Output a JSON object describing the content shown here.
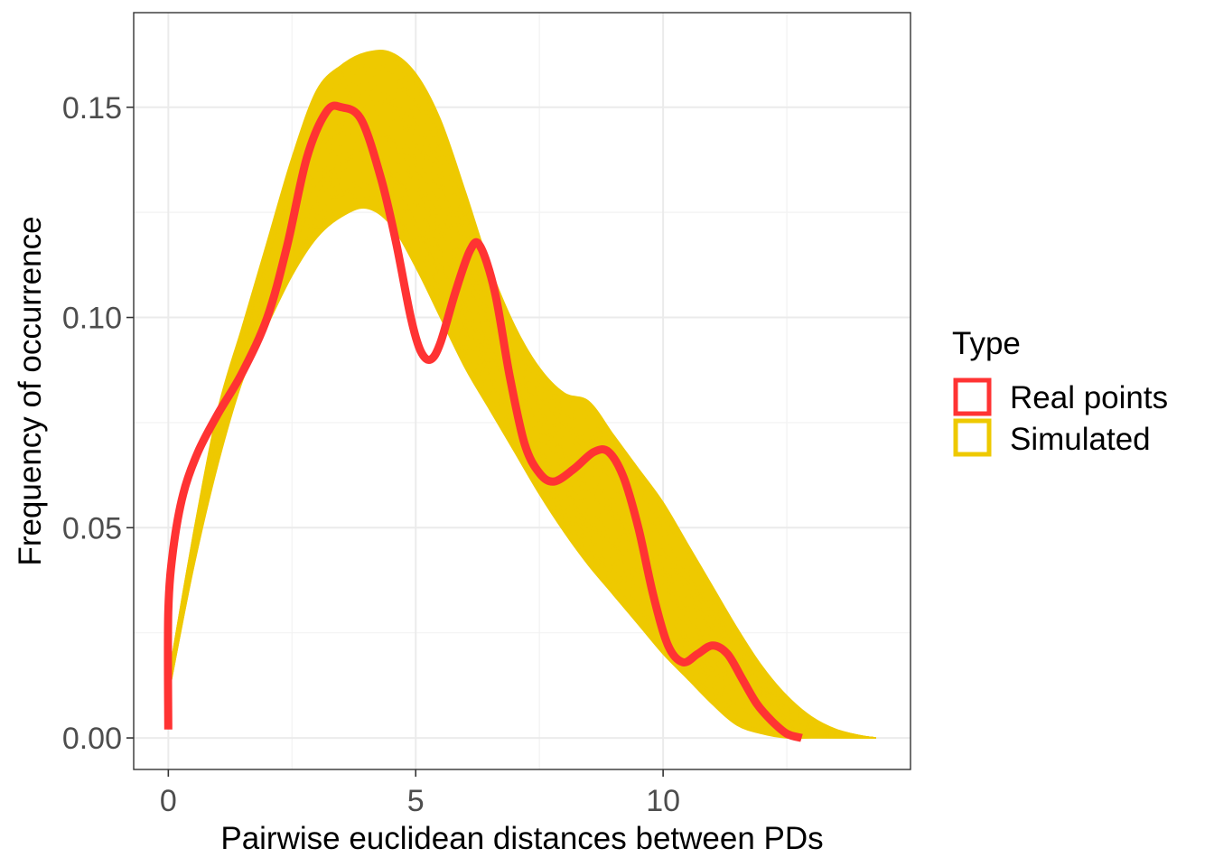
{
  "chart_data": {
    "type": "line",
    "xlabel": "Pairwise euclidean distances between PDs",
    "ylabel": "Frequency of occurrence",
    "xlim": [
      -0.7,
      15
    ],
    "ylim": [
      -0.0075,
      0.1725
    ],
    "x_ticks": [
      0,
      5,
      10
    ],
    "x_tick_labels": [
      "0",
      "5",
      "10"
    ],
    "y_ticks": [
      0,
      0.05,
      0.1,
      0.15
    ],
    "y_tick_labels": [
      "0.00",
      "0.05",
      "0.10",
      "0.15"
    ],
    "grid": true,
    "legend": {
      "title": "Type",
      "position": "right",
      "items": [
        {
          "label": "Real points",
          "color": "#ff3333"
        },
        {
          "label": "Simulated",
          "color": "#eec900"
        }
      ]
    },
    "series": [
      {
        "name": "Real points",
        "color": "#ff3333",
        "x": [
          0,
          0,
          0.1,
          0.3,
          0.6,
          1.0,
          1.5,
          2.0,
          2.4,
          2.8,
          3.2,
          3.5,
          3.9,
          4.3,
          4.6,
          4.9,
          5.1,
          5.3,
          5.5,
          5.8,
          6.1,
          6.3,
          6.6,
          6.9,
          7.2,
          7.5,
          7.8,
          8.2,
          8.6,
          8.9,
          9.2,
          9.5,
          9.8,
          10.1,
          10.4,
          10.7,
          11.0,
          11.3,
          11.6,
          11.9,
          12.2,
          12.5,
          12.8
        ],
        "y": [
          0.002,
          0.03,
          0.045,
          0.058,
          0.068,
          0.077,
          0.087,
          0.1,
          0.117,
          0.138,
          0.149,
          0.15,
          0.147,
          0.133,
          0.118,
          0.1,
          0.092,
          0.09,
          0.094,
          0.106,
          0.116,
          0.117,
          0.106,
          0.086,
          0.07,
          0.063,
          0.061,
          0.064,
          0.068,
          0.068,
          0.062,
          0.05,
          0.034,
          0.022,
          0.018,
          0.02,
          0.022,
          0.02,
          0.014,
          0.008,
          0.004,
          0.001,
          0
        ]
      },
      {
        "name": "Simulated",
        "color": "#eec900",
        "x": [
          0,
          0.5,
          1.0,
          1.5,
          2.0,
          2.5,
          3.0,
          3.5,
          4.0,
          4.5,
          5.0,
          5.5,
          6.0,
          6.5,
          7.0,
          7.5,
          8.0,
          8.5,
          9.0,
          9.5,
          10.0,
          10.5,
          11.0,
          11.5,
          12.0,
          12.5,
          13.0,
          13.5,
          14.0,
          14.3
        ],
        "ylow": [
          0.01,
          0.04,
          0.065,
          0.085,
          0.098,
          0.11,
          0.119,
          0.124,
          0.126,
          0.122,
          0.112,
          0.1,
          0.088,
          0.078,
          0.068,
          0.058,
          0.049,
          0.041,
          0.034,
          0.027,
          0.02,
          0.014,
          0.008,
          0.003,
          0.001,
          0.0,
          0.0,
          0.0,
          0.0,
          0.0
        ],
        "yhigh": [
          0.014,
          0.048,
          0.078,
          0.098,
          0.118,
          0.138,
          0.154,
          0.16,
          0.163,
          0.163,
          0.158,
          0.147,
          0.13,
          0.112,
          0.098,
          0.088,
          0.082,
          0.08,
          0.072,
          0.064,
          0.056,
          0.046,
          0.036,
          0.026,
          0.017,
          0.01,
          0.005,
          0.002,
          0.0005,
          0.0
        ]
      }
    ]
  }
}
